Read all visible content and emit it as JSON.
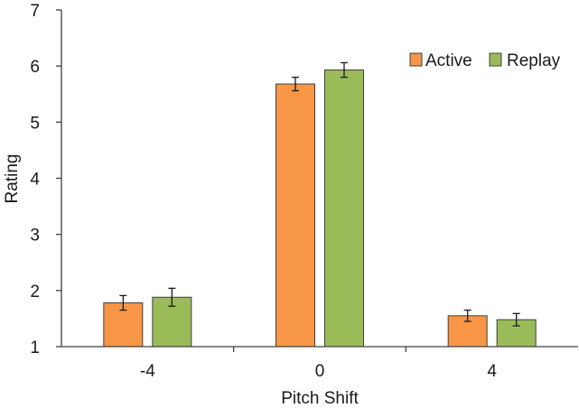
{
  "chart_data": {
    "type": "bar",
    "title": "",
    "xlabel": "Pitch Shift",
    "ylabel": "Rating",
    "categories": [
      "-4",
      "0",
      "4"
    ],
    "ylim": [
      1,
      7
    ],
    "yticks": [
      "1",
      "2",
      "3",
      "4",
      "5",
      "6",
      "7"
    ],
    "grid": false,
    "legend_position": "top-right",
    "series": [
      {
        "name": "Active",
        "color": "#F79646",
        "values": [
          1.78,
          5.68,
          1.55
        ],
        "errors": [
          0.13,
          0.12,
          0.1
        ]
      },
      {
        "name": "Replay",
        "color": "#9BBB59",
        "values": [
          1.88,
          5.93,
          1.48
        ],
        "errors": [
          0.16,
          0.13,
          0.11
        ]
      }
    ]
  }
}
